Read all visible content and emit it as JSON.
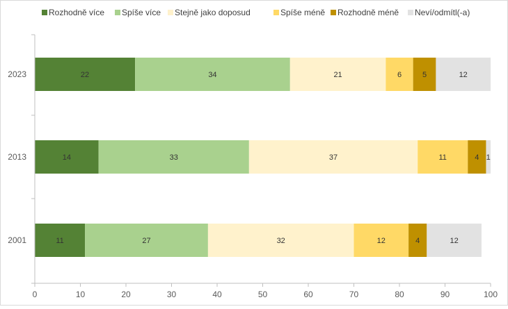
{
  "chart_data": {
    "type": "bar",
    "orientation": "horizontal",
    "stacked": true,
    "categories": [
      "2023",
      "2013",
      "2001"
    ],
    "series": [
      {
        "name": "Rozhodně více",
        "color": "#548235",
        "label_color": "#333333",
        "values": [
          22,
          14,
          11
        ]
      },
      {
        "name": "Spíše více",
        "color": "#a9d18e",
        "label_color": "#333333",
        "values": [
          34,
          33,
          27
        ]
      },
      {
        "name": "Stejně jako doposud",
        "color": "#fff2cc",
        "label_color": "#333333",
        "values": [
          21,
          37,
          32
        ]
      },
      {
        "name": "Spíše méně",
        "color": "#ffd966",
        "label_color": "#333333",
        "values": [
          6,
          11,
          12
        ]
      },
      {
        "name": "Rozhodně méně",
        "color": "#bf9000",
        "label_color": "#333333",
        "values": [
          5,
          4,
          4
        ]
      },
      {
        "name": "Neví/odmítl(-a)",
        "color": "#e2e2e2",
        "label_color": "#333333",
        "values": [
          12,
          1,
          12
        ]
      }
    ],
    "xlim": [
      0,
      100
    ],
    "xticks": [
      0,
      10,
      20,
      30,
      40,
      50,
      60,
      70,
      80,
      90,
      100
    ],
    "grid": false,
    "legend_position": "top",
    "title": "",
    "xlabel": "",
    "ylabel": ""
  }
}
